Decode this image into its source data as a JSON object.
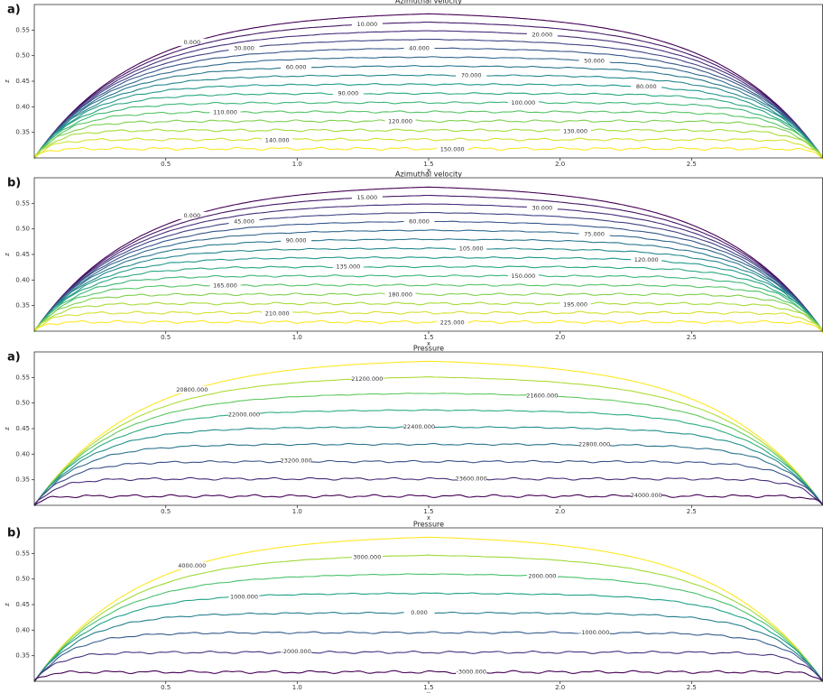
{
  "chart_data": [
    {
      "type": "contour",
      "panel_label": "a)",
      "title": "Azimuthal velocity",
      "xlabel": "x",
      "ylabel": "z",
      "xlim": [
        0,
        3
      ],
      "ylim": [
        0.3,
        0.6
      ],
      "xticks": [
        0.5,
        {
          "value": 1,
          "label": "1.0"
        },
        1.5,
        {
          "value": 2,
          "label": "2.0"
        },
        2.5
      ],
      "yticks": [
        0.35,
        {
          "value": 0.4,
          "label": "0.40"
        },
        0.45,
        {
          "value": 0.5,
          "label": "0.50"
        },
        0.55
      ],
      "colormap": "viridis",
      "reversed": false,
      "levels": [
        {
          "value": 0,
          "label": "0.000"
        },
        {
          "value": 10,
          "label": "10.000"
        },
        {
          "value": 20,
          "label": "20.000"
        },
        {
          "value": 30,
          "label": "30.000"
        },
        {
          "value": 40,
          "label": "40.000"
        },
        {
          "value": 50,
          "label": "50.000"
        },
        {
          "value": 60,
          "label": "60.000"
        },
        {
          "value": 70,
          "label": "70.000"
        },
        {
          "value": 80,
          "label": "80.000"
        },
        {
          "value": 90,
          "label": "90.000"
        },
        {
          "value": 100,
          "label": "100.000"
        },
        {
          "value": 110,
          "label": "110.000"
        },
        {
          "value": 120,
          "label": "120.000"
        },
        {
          "value": 130,
          "label": "130.000"
        },
        {
          "value": 140,
          "label": "140.000"
        },
        {
          "value": 150,
          "label": "150.000"
        }
      ]
    },
    {
      "type": "contour",
      "panel_label": "b)",
      "title": "Azimuthal velocity",
      "xlabel": "x",
      "ylabel": "z",
      "xlim": [
        0,
        3
      ],
      "ylim": [
        0.3,
        0.6
      ],
      "xticks": [
        0.5,
        {
          "value": 1,
          "label": "1.0"
        },
        1.5,
        {
          "value": 2,
          "label": "2.0"
        },
        2.5
      ],
      "yticks": [
        0.35,
        {
          "value": 0.4,
          "label": "0.40"
        },
        0.45,
        {
          "value": 0.5,
          "label": "0.50"
        },
        0.55
      ],
      "colormap": "viridis",
      "reversed": false,
      "levels": [
        {
          "value": 0,
          "label": "0.000"
        },
        {
          "value": 15,
          "label": "15.000"
        },
        {
          "value": 30,
          "label": "30.000"
        },
        {
          "value": 45,
          "label": "45.000"
        },
        {
          "value": 60,
          "label": "60.000"
        },
        {
          "value": 75,
          "label": "75.000"
        },
        {
          "value": 90,
          "label": "90.000"
        },
        {
          "value": 105,
          "label": "105.000"
        },
        {
          "value": 120,
          "label": "120.000"
        },
        {
          "value": 135,
          "label": "135.000"
        },
        {
          "value": 150,
          "label": "150.000"
        },
        {
          "value": 165,
          "label": "165.000"
        },
        {
          "value": 180,
          "label": "180.000"
        },
        {
          "value": 195,
          "label": "195.000"
        },
        {
          "value": 210,
          "label": "210.000"
        },
        {
          "value": 225,
          "label": "225.000"
        }
      ]
    },
    {
      "type": "contour",
      "panel_label": "a)",
      "title": "Pressure",
      "xlabel": "x",
      "ylabel": "z",
      "xlim": [
        0,
        3
      ],
      "ylim": [
        0.3,
        0.6
      ],
      "xticks": [
        0.5,
        {
          "value": 1,
          "label": "1.0"
        },
        1.5,
        {
          "value": 2,
          "label": "2.0"
        },
        2.5
      ],
      "yticks": [
        0.35,
        {
          "value": 0.4,
          "label": "0.40"
        },
        0.45,
        {
          "value": 0.5,
          "label": "0.50"
        },
        0.55
      ],
      "colormap": "viridis",
      "reversed": true,
      "levels": [
        {
          "value": 20800,
          "label": "20800.000"
        },
        {
          "value": 21200,
          "label": "21200.000"
        },
        {
          "value": 21600,
          "label": "21600.000"
        },
        {
          "value": 22000,
          "label": "22000.000"
        },
        {
          "value": 22400,
          "label": "22400.000"
        },
        {
          "value": 22800,
          "label": "22800.000"
        },
        {
          "value": 23200,
          "label": "23200.000"
        },
        {
          "value": 23600,
          "label": "23600.000"
        },
        {
          "value": 24000,
          "label": "24000.000"
        }
      ]
    },
    {
      "type": "contour",
      "panel_label": "b)",
      "title": "Pressure",
      "xlabel": "x",
      "ylabel": "z",
      "xlim": [
        0,
        3
      ],
      "ylim": [
        0.3,
        0.6
      ],
      "xticks": [
        0.5,
        {
          "value": 1,
          "label": "1.0"
        },
        1.5,
        {
          "value": 2,
          "label": "2.0"
        },
        2.5
      ],
      "yticks": [
        0.35,
        {
          "value": 0.4,
          "label": "0.40"
        },
        0.45,
        {
          "value": 0.5,
          "label": "0.50"
        },
        0.55
      ],
      "colormap": "viridis",
      "reversed": true,
      "levels": [
        {
          "value": 4000,
          "label": "4000.000"
        },
        {
          "value": 3000,
          "label": "3000.000"
        },
        {
          "value": 2000,
          "label": "2000.000"
        },
        {
          "value": 1000,
          "label": "1000.000"
        },
        {
          "value": 0,
          "label": "0.000"
        },
        {
          "value": -1000,
          "label": "-1000.000"
        },
        {
          "value": -2000,
          "label": "-2000.000"
        },
        {
          "value": -3000,
          "label": "-3000.000"
        }
      ]
    }
  ]
}
